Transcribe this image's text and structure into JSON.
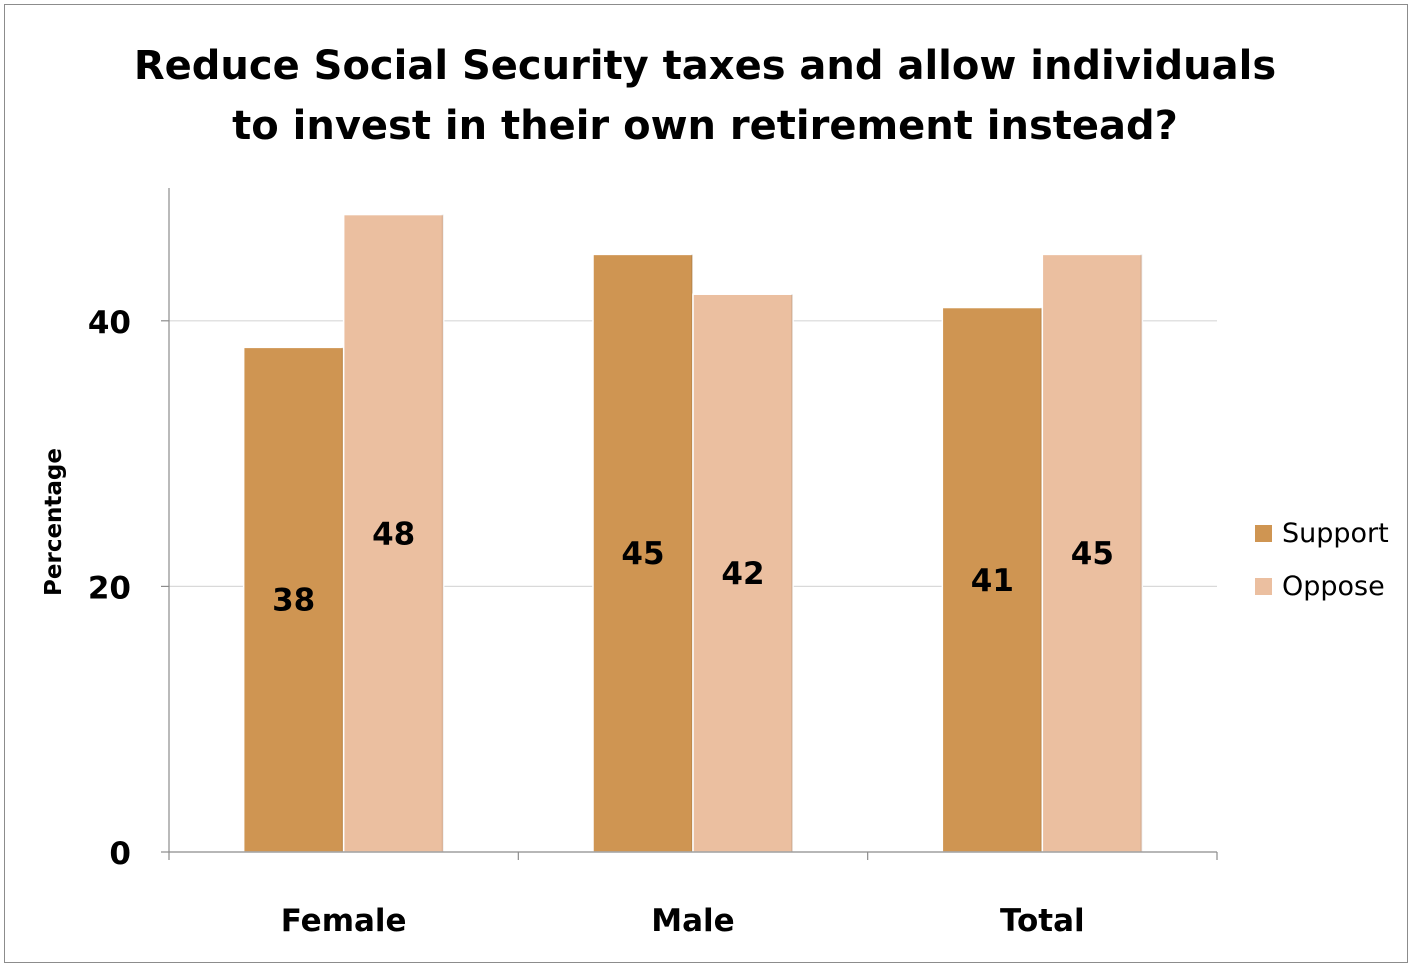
{
  "chart_data": {
    "type": "bar",
    "title_lines": [
      "Reduce Social Security taxes and allow individuals",
      "to invest in their own retirement instead?"
    ],
    "xlabel": "",
    "ylabel": "Percentage",
    "categories": [
      "Female",
      "Male",
      "Total"
    ],
    "series": [
      {
        "name": "Support",
        "values": [
          38,
          45,
          41
        ],
        "labels": [
          "38",
          "45",
          "41"
        ],
        "color": "#cf9552"
      },
      {
        "name": "Oppose",
        "values": [
          48,
          42,
          45
        ],
        "labels": [
          "48",
          "42",
          "45"
        ],
        "color": "#ebbfa0"
      }
    ],
    "yticks": [
      0,
      20,
      40
    ],
    "ytick_labels": [
      "0",
      "20",
      "40"
    ],
    "ylim": [
      0,
      50
    ],
    "grid": true,
    "legend_position": "right",
    "gridline_color": "#d9d9d9",
    "axis_color": "#8c8c8c"
  }
}
